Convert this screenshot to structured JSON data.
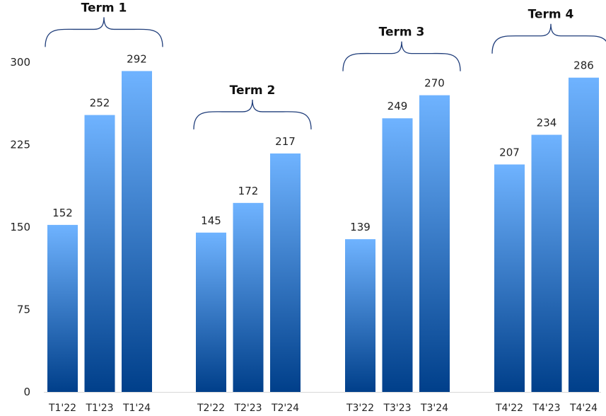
{
  "chart_data": {
    "type": "bar",
    "categories": [
      "T1'22",
      "T1'23",
      "T1'24",
      "T2'22",
      "T2'23",
      "T2'24",
      "T3'22",
      "T3'23",
      "T3'24",
      "T4'22",
      "T4'23",
      "T4'24"
    ],
    "values": [
      152,
      252,
      292,
      145,
      172,
      217,
      139,
      249,
      270,
      207,
      234,
      286
    ],
    "groups": [
      {
        "label": "Term 1",
        "members": [
          "T1'22",
          "T1'23",
          "T1'24"
        ]
      },
      {
        "label": "Term 2",
        "members": [
          "T2'22",
          "T2'23",
          "T2'24"
        ]
      },
      {
        "label": "Term 3",
        "members": [
          "T3'22",
          "T3'23",
          "T3'24"
        ]
      },
      {
        "label": "Term 4",
        "members": [
          "T4'22",
          "T4'23",
          "T4'24"
        ]
      }
    ],
    "yticks": [
      "0",
      "75",
      "150",
      "225",
      "300"
    ],
    "ylim": [
      0,
      300
    ],
    "grid": false,
    "colors": {
      "bar_top": "#6fb3ff",
      "bar_bottom": "#003f8a",
      "brace": "#1f3d7a"
    }
  }
}
